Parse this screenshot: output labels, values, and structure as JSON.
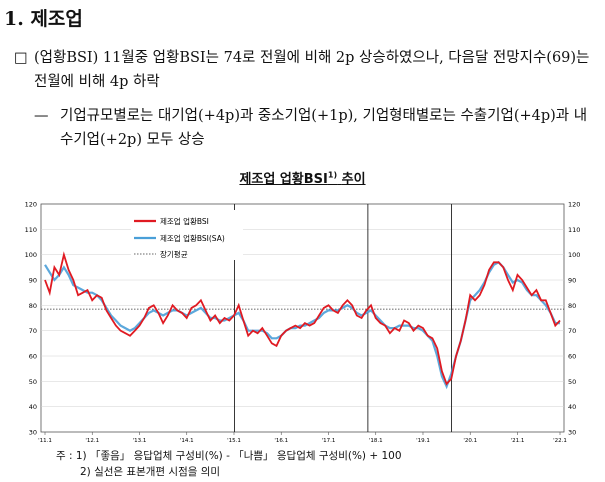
{
  "heading": "1. 제조업",
  "bullet": {
    "mark": "□",
    "text": "(업황BSI) 11월중 업황BSI는 74로 전월에 비해 2p 상승하였으나, 다음달 전망지수(69)는 전월에 비해 4p 하락"
  },
  "sub_bullet": {
    "mark": "—",
    "text": "기업규모별로는 대기업(+4p)과 중소기업(+1p), 기업형태별로는 수출기업(+4p)과 내수기업(+2p) 모두 상승"
  },
  "chart_title": "제조업 업황BSI",
  "chart_title_sup": "1)",
  "chart_title_suffix": "추이",
  "chart_data": {
    "type": "line",
    "ylim": [
      30,
      120
    ],
    "yticks": [
      "30",
      "40",
      "50",
      "60",
      "70",
      "80",
      "90",
      "100",
      "110",
      "120"
    ],
    "xtick_labels": [
      "'11.1",
      "'12.1",
      "'13.1",
      "'14.1",
      "'15.1",
      "'16.1",
      "'17.1",
      "'18.1",
      "'19.1",
      "'20.1",
      "'21.1",
      "'22.1"
    ],
    "reference_level": 78.5,
    "legend": [
      "제조업 업황BSI",
      "제조업 업황BSI(SA)",
      "장기평균"
    ],
    "series": [
      {
        "name": "제조업 업황BSI",
        "color": "#e01a22",
        "values": [
          90,
          85,
          95,
          92,
          100,
          94,
          90,
          84,
          85,
          86,
          82,
          84,
          83,
          78,
          75,
          72,
          70,
          69,
          68,
          70,
          72,
          75,
          79,
          80,
          77,
          73,
          76,
          80,
          78,
          77,
          75,
          79,
          80,
          82,
          78,
          74,
          76,
          73,
          75,
          74,
          76,
          80,
          74,
          68,
          70,
          69,
          71,
          68,
          65,
          64,
          68,
          70,
          71,
          72,
          71,
          73,
          72,
          73,
          76,
          79,
          80,
          78,
          77,
          80,
          82,
          80,
          76,
          75,
          78,
          80,
          75,
          73,
          72,
          69,
          71,
          70,
          74,
          73,
          70,
          72,
          71,
          68,
          67,
          63,
          54,
          49,
          51,
          60,
          66,
          74,
          84,
          82,
          84,
          88,
          94,
          97,
          97,
          95,
          90,
          86,
          92,
          90,
          87,
          84,
          86,
          82,
          82,
          77,
          72,
          74
        ]
      },
      {
        "name": "제조업 업황BSI(SA)",
        "color": "#4a9fd8",
        "values": [
          96,
          93,
          90,
          92,
          95,
          92,
          88,
          87,
          86,
          85,
          85,
          84,
          82,
          79,
          76,
          74,
          72,
          71,
          70,
          71,
          73,
          75,
          77,
          78,
          77,
          76,
          77,
          78,
          78,
          77,
          76,
          77,
          78,
          79,
          77,
          75,
          75,
          74,
          74,
          75,
          76,
          77,
          74,
          70,
          70,
          70,
          70,
          69,
          67,
          67,
          68,
          70,
          71,
          71,
          72,
          72,
          73,
          74,
          75,
          77,
          78,
          78,
          78,
          79,
          80,
          79,
          77,
          76,
          77,
          78,
          76,
          74,
          72,
          71,
          71,
          72,
          72,
          72,
          71,
          71,
          70,
          68,
          66,
          60,
          52,
          48,
          53,
          60,
          66,
          74,
          82,
          84,
          86,
          89,
          93,
          96,
          97,
          95,
          92,
          89,
          90,
          89,
          86,
          84,
          84,
          82,
          80,
          77,
          73,
          73
        ]
      }
    ]
  },
  "notes": {
    "note1": "주 : 1) 「좋음」 응답업체 구성비(%) - 「나쁨」 응답업체 구성비(%) + 100",
    "note2": "2) 실선은 표본개편 시점을 의미"
  }
}
